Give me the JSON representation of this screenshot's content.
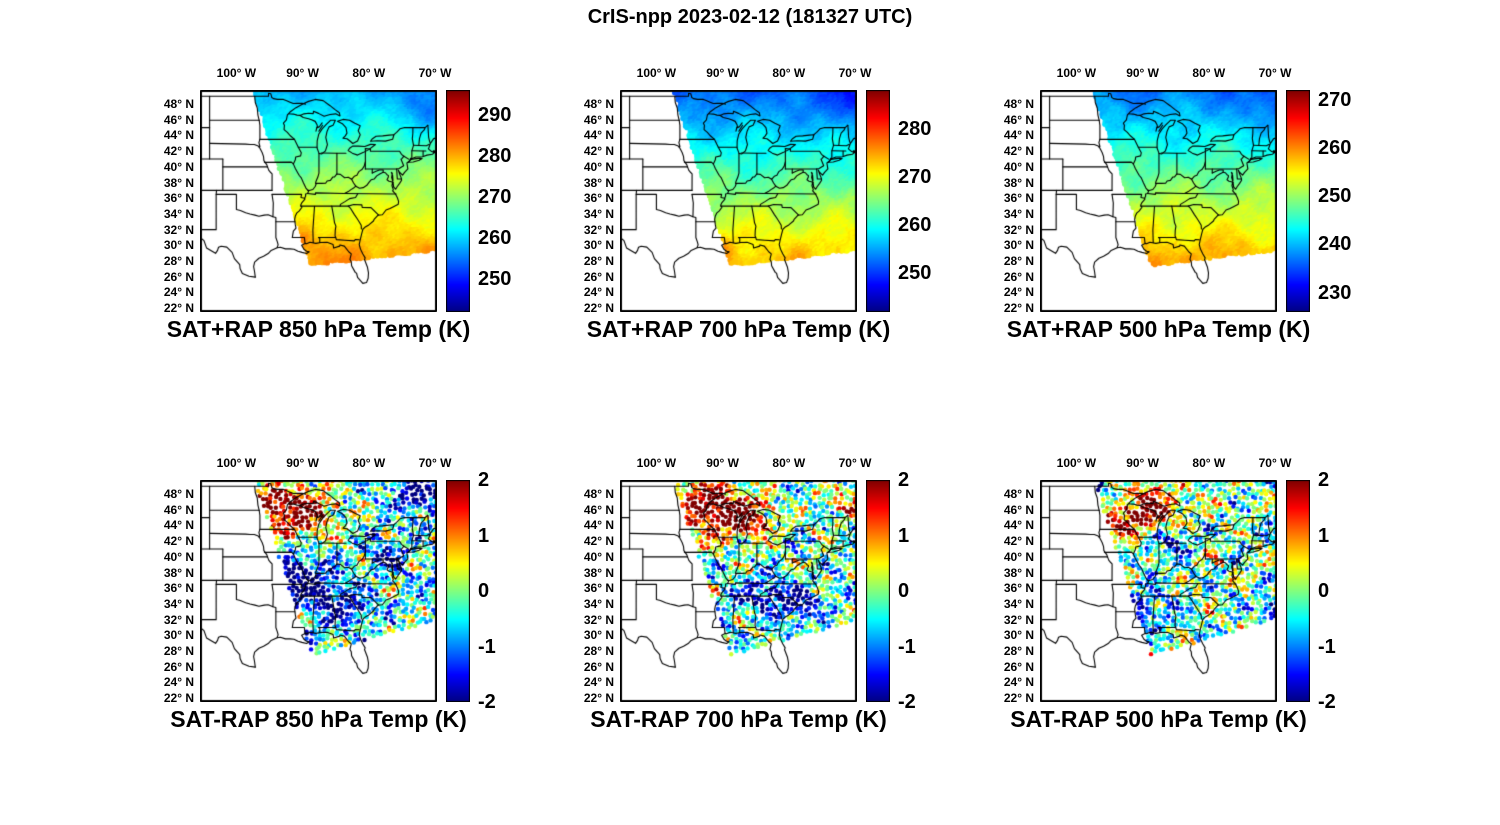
{
  "figure_title": "CrIS-npp 2023-02-12 (181327 UTC)",
  "chart_data": {
    "type": "map-grid",
    "satellite": "CrIS-npp",
    "timestamp_label": "2023-02-12 (181327 UTC)",
    "colormap": "jet",
    "projection": {
      "lon_range": [
        -105.5,
        -69.7
      ],
      "lat_range": [
        21.5,
        49.8
      ]
    },
    "lon_ticks": [
      {
        "deg": -100,
        "label": "100° W"
      },
      {
        "deg": -90,
        "label": "90° W"
      },
      {
        "deg": -80,
        "label": "80° W"
      },
      {
        "deg": -70,
        "label": "70° W"
      }
    ],
    "lat_ticks": [
      {
        "deg": 48,
        "label": "48° N"
      },
      {
        "deg": 46,
        "label": "46° N"
      },
      {
        "deg": 44,
        "label": "44° N"
      },
      {
        "deg": 42,
        "label": "42° N"
      },
      {
        "deg": 40,
        "label": "40° N"
      },
      {
        "deg": 38,
        "label": "38° N"
      },
      {
        "deg": 36,
        "label": "36° N"
      },
      {
        "deg": 34,
        "label": "34° N"
      },
      {
        "deg": 32,
        "label": "32° N"
      },
      {
        "deg": 30,
        "label": "30° N"
      },
      {
        "deg": 28,
        "label": "28° N"
      },
      {
        "deg": 26,
        "label": "26° N"
      },
      {
        "deg": 24,
        "label": "24° N"
      },
      {
        "deg": 22,
        "label": "22° N"
      }
    ],
    "panels": [
      {
        "title": "SAT+RAP 850 hPa Temp (K)",
        "row": 0,
        "col": 0,
        "type": "heatmap",
        "units": "K",
        "colorbar": {
          "min": 242,
          "max": 296,
          "ticks": [
            290,
            280,
            270,
            260,
            250
          ]
        },
        "field": {
          "north": 258,
          "south": 288,
          "anomalies": [
            {
              "lon": -91.0,
              "lat": 30.2,
              "r": 1.6,
              "dv": 5
            },
            {
              "lon": -70.5,
              "lat": 47.5,
              "r": 3.0,
              "dv": -5
            }
          ]
        }
      },
      {
        "title": "SAT+RAP 700 hPa Temp (K)",
        "row": 0,
        "col": 1,
        "type": "heatmap",
        "units": "K",
        "colorbar": {
          "min": 242,
          "max": 288,
          "ticks": [
            280,
            270,
            260,
            250
          ]
        },
        "field": {
          "north": 252,
          "south": 280,
          "anomalies": [
            {
              "lon": -70.5,
              "lat": 47.5,
              "r": 3.0,
              "dv": -4
            },
            {
              "lon": -91.0,
              "lat": 30.2,
              "r": 1.6,
              "dv": 4
            }
          ]
        }
      },
      {
        "title": "SAT+RAP 500 hPa Temp (K)",
        "row": 0,
        "col": 2,
        "type": "heatmap",
        "units": "K",
        "colorbar": {
          "min": 226,
          "max": 272,
          "ticks": [
            270,
            260,
            250,
            240,
            230
          ]
        },
        "field": {
          "north": 237,
          "south": 265,
          "anomalies": [
            {
              "lon": -70.5,
              "lat": 47.5,
              "r": 3.0,
              "dv": -3.5
            }
          ]
        }
      },
      {
        "title": "SAT-RAP 850 hPa Temp (K)",
        "row": 1,
        "col": 0,
        "type": "scatter",
        "units": "K",
        "colorbar": {
          "min": -2,
          "max": 2,
          "ticks": [
            2,
            1,
            0,
            -1,
            -2
          ]
        },
        "field": {
          "bias": -0.35,
          "anomalies": [
            {
              "lon": -90.5,
              "lat": 45.8,
              "r": 3.2,
              "dv": 2.6
            },
            {
              "lon": -96.0,
              "lat": 47.0,
              "r": 2.0,
              "dv": 2.0
            },
            {
              "lon": -90.5,
              "lat": 36.8,
              "r": 3.2,
              "dv": -2.4
            },
            {
              "lon": -83.5,
              "lat": 33.5,
              "r": 2.5,
              "dv": -1.6
            },
            {
              "lon": -72.5,
              "lat": 48.0,
              "r": 2.2,
              "dv": -2.0
            },
            {
              "lon": -77.0,
              "lat": 40.0,
              "r": 2.0,
              "dv": -1.2
            }
          ]
        }
      },
      {
        "title": "SAT-RAP 700 hPa Temp (K)",
        "row": 1,
        "col": 1,
        "type": "scatter",
        "units": "K",
        "colorbar": {
          "min": -2,
          "max": 2,
          "ticks": [
            2,
            1,
            0,
            -1,
            -2
          ]
        },
        "field": {
          "bias": -0.3,
          "anomalies": [
            {
              "lon": -92.5,
              "lat": 46.3,
              "r": 3.5,
              "dv": 2.8
            },
            {
              "lon": -86.5,
              "lat": 44.8,
              "r": 2.5,
              "dv": 2.2
            },
            {
              "lon": -97.0,
              "lat": 43.5,
              "r": 1.8,
              "dv": -1.6
            },
            {
              "lon": -84.0,
              "lat": 35.0,
              "r": 2.5,
              "dv": -1.4
            },
            {
              "lon": -78.5,
              "lat": 34.0,
              "r": 2.0,
              "dv": -1.8
            },
            {
              "lon": -71.0,
              "lat": 47.0,
              "r": 2.0,
              "dv": 1.5
            }
          ]
        }
      },
      {
        "title": "SAT-RAP 500 hPa Temp (K)",
        "row": 1,
        "col": 2,
        "type": "scatter",
        "units": "K",
        "colorbar": {
          "min": -2,
          "max": 2,
          "ticks": [
            2,
            1,
            0,
            -1,
            -2
          ]
        },
        "field": {
          "bias": -0.2,
          "anomalies": [
            {
              "lon": -89.5,
              "lat": 45.8,
              "r": 3.0,
              "dv": 2.6
            },
            {
              "lon": -96.5,
              "lat": 44.0,
              "r": 2.0,
              "dv": 1.8
            },
            {
              "lon": -98.0,
              "lat": 47.5,
              "r": 1.8,
              "dv": -1.8
            },
            {
              "lon": -86.0,
              "lat": 42.0,
              "r": 2.0,
              "dv": -1.4
            },
            {
              "lon": -90.0,
              "lat": 33.0,
              "r": 2.5,
              "dv": -1.2
            },
            {
              "lon": -70.3,
              "lat": 33.3,
              "r": 1.2,
              "dv": -2.2
            }
          ]
        }
      }
    ]
  }
}
